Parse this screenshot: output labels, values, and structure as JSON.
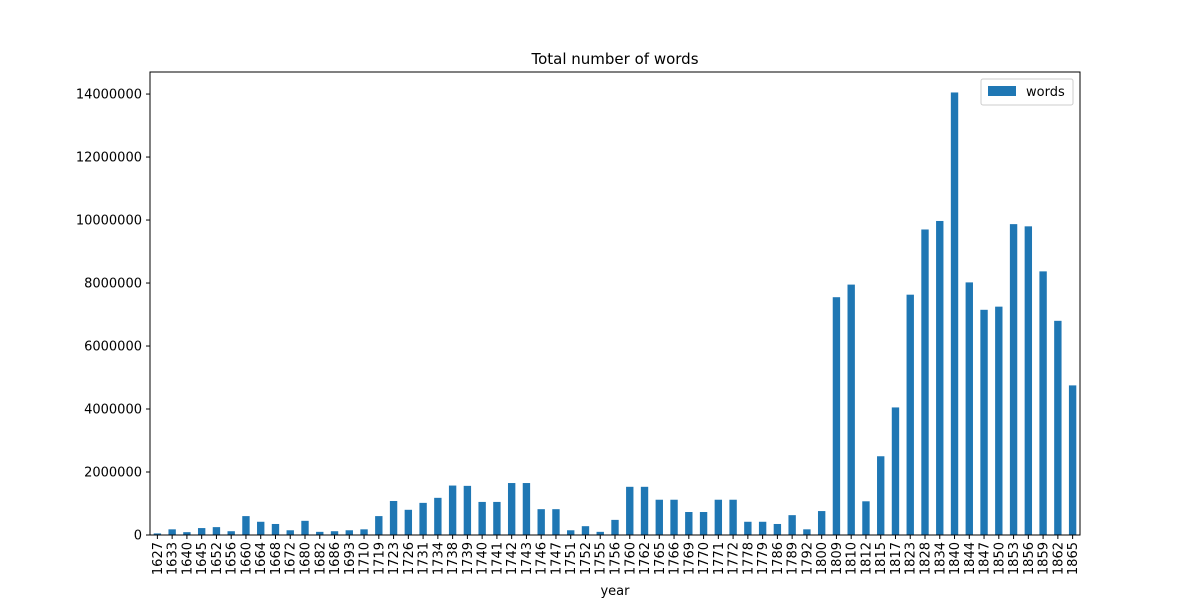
{
  "chart_data": {
    "type": "bar",
    "title": "Total number of words",
    "xlabel": "year",
    "ylabel": "",
    "ylim": [
      0,
      14700000
    ],
    "yticks": [
      0,
      2000000,
      4000000,
      6000000,
      8000000,
      10000000,
      12000000,
      14000000
    ],
    "ytick_labels": [
      "0",
      "2000000",
      "4000000",
      "6000000",
      "8000000",
      "10000000",
      "12000000",
      "14000000"
    ],
    "grid": false,
    "legend_position": "top-right",
    "bar_color": "#1f77b4",
    "categories": [
      "1627",
      "1633",
      "1640",
      "1645",
      "1652",
      "1656",
      "1660",
      "1664",
      "1668",
      "1672",
      "1680",
      "1682",
      "1686",
      "1693",
      "1710",
      "1719",
      "1723",
      "1726",
      "1731",
      "1734",
      "1738",
      "1739",
      "1740",
      "1741",
      "1742",
      "1743",
      "1746",
      "1747",
      "1751",
      "1752",
      "1755",
      "1756",
      "1760",
      "1762",
      "1765",
      "1766",
      "1769",
      "1770",
      "1771",
      "1772",
      "1778",
      "1779",
      "1786",
      "1789",
      "1792",
      "1800",
      "1809",
      "1810",
      "1812",
      "1815",
      "1817",
      "1823",
      "1828",
      "1834",
      "1840",
      "1844",
      "1847",
      "1850",
      "1853",
      "1856",
      "1859",
      "1862",
      "1865"
    ],
    "series": [
      {
        "name": "words",
        "values": [
          50000,
          180000,
          90000,
          220000,
          250000,
          120000,
          600000,
          420000,
          350000,
          150000,
          450000,
          100000,
          120000,
          150000,
          180000,
          600000,
          1080000,
          800000,
          1020000,
          1180000,
          1570000,
          1560000,
          1050000,
          1050000,
          1650000,
          1650000,
          820000,
          820000,
          150000,
          280000,
          100000,
          480000,
          1530000,
          1530000,
          1120000,
          1120000,
          730000,
          730000,
          1120000,
          1120000,
          420000,
          420000,
          350000,
          630000,
          180000,
          760000,
          7550000,
          7950000,
          1070000,
          2500000,
          4050000,
          7630000,
          9700000,
          9970000,
          14050000,
          8020000,
          7150000,
          7250000,
          9870000,
          9800000,
          8370000,
          6800000,
          4750000
        ]
      }
    ]
  }
}
